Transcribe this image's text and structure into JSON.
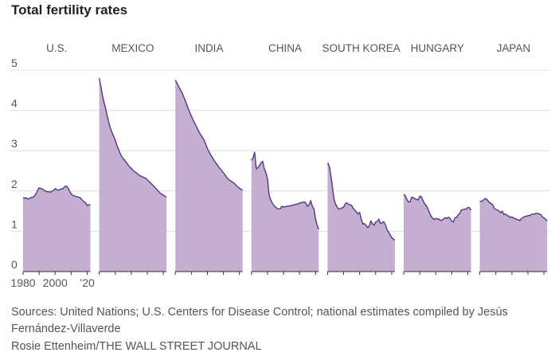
{
  "title": "Total fertility rates",
  "source_line1": "Sources: United Nations; U.S. Centers for Disease Control; national estimates compiled by Jesús",
  "source_line2": "Fernández-Villaverde",
  "credit": "Rosie Ettenheim/THE WALL STREET JOURNAL",
  "colors": {
    "fill": "#c4afd1",
    "line": "#5b3f86",
    "grid": "#dddddd",
    "axis": "#333333",
    "text": "#555555"
  },
  "chart_data": {
    "type": "area",
    "title": "Total fertility rates",
    "x_ticks": [
      "1980",
      "2000",
      "’20"
    ],
    "x_domain": [
      1980,
      2022
    ],
    "y_ticks": [
      0,
      1,
      2,
      3,
      4,
      5
    ],
    "ylim": [
      0,
      5
    ],
    "grid": true,
    "series": [
      {
        "name": "U.S.",
        "x": [
          1980,
          1981,
          1982,
          1983,
          1984,
          1985,
          1986,
          1987,
          1988,
          1989,
          1990,
          1991,
          1992,
          1993,
          1994,
          1995,
          1996,
          1997,
          1998,
          1999,
          2000,
          2001,
          2002,
          2003,
          2004,
          2005,
          2006,
          2007,
          2008,
          2009,
          2010,
          2011,
          2012,
          2013,
          2014,
          2015,
          2016,
          2017,
          2018,
          2019,
          2020,
          2021,
          2022
        ],
        "values": [
          1.84,
          1.82,
          1.83,
          1.8,
          1.81,
          1.84,
          1.84,
          1.87,
          1.93,
          2.01,
          2.08,
          2.06,
          2.05,
          2.02,
          2.0,
          1.98,
          1.98,
          1.97,
          2.0,
          2.01,
          2.06,
          2.03,
          2.02,
          2.04,
          2.05,
          2.06,
          2.11,
          2.12,
          2.08,
          2.0,
          1.93,
          1.89,
          1.88,
          1.86,
          1.86,
          1.84,
          1.82,
          1.77,
          1.73,
          1.71,
          1.64,
          1.66,
          1.65
        ]
      },
      {
        "name": "MEXICO",
        "x": [
          1980,
          1981,
          1982,
          1983,
          1984,
          1985,
          1986,
          1987,
          1988,
          1989,
          1990,
          1991,
          1992,
          1993,
          1994,
          1995,
          1996,
          1997,
          1998,
          1999,
          2000,
          2001,
          2002,
          2003,
          2004,
          2005,
          2006,
          2007,
          2008,
          2009,
          2010,
          2011,
          2012,
          2013,
          2014,
          2015,
          2016,
          2017,
          2018,
          2019,
          2020,
          2021,
          2022
        ],
        "values": [
          4.8,
          4.6,
          4.38,
          4.2,
          4.05,
          3.86,
          3.7,
          3.56,
          3.45,
          3.36,
          3.26,
          3.14,
          3.04,
          2.94,
          2.86,
          2.8,
          2.76,
          2.7,
          2.65,
          2.6,
          2.56,
          2.52,
          2.48,
          2.46,
          2.42,
          2.39,
          2.37,
          2.35,
          2.33,
          2.32,
          2.28,
          2.24,
          2.2,
          2.16,
          2.12,
          2.08,
          2.04,
          1.99,
          1.95,
          1.92,
          1.9,
          1.87,
          1.85
        ]
      },
      {
        "name": "INDIA",
        "x": [
          1980,
          1981,
          1982,
          1983,
          1984,
          1985,
          1986,
          1987,
          1988,
          1989,
          1990,
          1991,
          1992,
          1993,
          1994,
          1995,
          1996,
          1997,
          1998,
          1999,
          2000,
          2001,
          2002,
          2003,
          2004,
          2005,
          2006,
          2007,
          2008,
          2009,
          2010,
          2011,
          2012,
          2013,
          2014,
          2015,
          2016,
          2017,
          2018,
          2019,
          2020,
          2021,
          2022
        ],
        "values": [
          4.75,
          4.68,
          4.6,
          4.52,
          4.45,
          4.36,
          4.26,
          4.16,
          4.05,
          3.95,
          3.86,
          3.77,
          3.69,
          3.61,
          3.53,
          3.45,
          3.38,
          3.32,
          3.26,
          3.16,
          3.05,
          2.98,
          2.9,
          2.84,
          2.77,
          2.71,
          2.66,
          2.6,
          2.55,
          2.5,
          2.45,
          2.4,
          2.34,
          2.3,
          2.26,
          2.24,
          2.21,
          2.18,
          2.14,
          2.1,
          2.07,
          2.04,
          2.02
        ]
      },
      {
        "name": "CHINA",
        "x": [
          1980,
          1981,
          1982,
          1983,
          1984,
          1985,
          1986,
          1987,
          1988,
          1989,
          1990,
          1991,
          1992,
          1993,
          1994,
          1995,
          1996,
          1997,
          1998,
          1999,
          2000,
          2001,
          2002,
          2003,
          2004,
          2005,
          2006,
          2007,
          2008,
          2009,
          2010,
          2011,
          2012,
          2013,
          2014,
          2015,
          2016,
          2017,
          2018,
          2019,
          2020,
          2021,
          2022
        ],
        "values": [
          2.76,
          2.82,
          2.96,
          2.55,
          2.58,
          2.63,
          2.7,
          2.74,
          2.55,
          2.46,
          2.3,
          1.9,
          1.78,
          1.7,
          1.64,
          1.6,
          1.57,
          1.55,
          1.56,
          1.62,
          1.6,
          1.61,
          1.62,
          1.62,
          1.63,
          1.64,
          1.65,
          1.66,
          1.67,
          1.68,
          1.7,
          1.71,
          1.72,
          1.73,
          1.7,
          1.62,
          1.66,
          1.76,
          1.62,
          1.56,
          1.3,
          1.15,
          1.05
        ]
      },
      {
        "name": "SOUTH KOREA",
        "x": [
          1980,
          1981,
          1982,
          1983,
          1984,
          1985,
          1986,
          1987,
          1988,
          1989,
          1990,
          1991,
          1992,
          1993,
          1994,
          1995,
          1996,
          1997,
          1998,
          1999,
          2000,
          2001,
          2002,
          2003,
          2004,
          2005,
          2006,
          2007,
          2008,
          2009,
          2010,
          2011,
          2012,
          2013,
          2014,
          2015,
          2016,
          2017,
          2018,
          2019,
          2020,
          2021,
          2022
        ],
        "values": [
          2.7,
          2.62,
          2.4,
          2.1,
          1.8,
          1.67,
          1.6,
          1.55,
          1.56,
          1.58,
          1.6,
          1.68,
          1.71,
          1.67,
          1.66,
          1.64,
          1.57,
          1.52,
          1.48,
          1.43,
          1.47,
          1.3,
          1.18,
          1.19,
          1.15,
          1.09,
          1.13,
          1.26,
          1.19,
          1.15,
          1.23,
          1.24,
          1.3,
          1.19,
          1.21,
          1.24,
          1.17,
          1.05,
          0.98,
          0.92,
          0.84,
          0.81,
          0.78
        ]
      },
      {
        "name": "HUNGARY",
        "x": [
          1980,
          1981,
          1982,
          1983,
          1984,
          1985,
          1986,
          1987,
          1988,
          1989,
          1990,
          1991,
          1992,
          1993,
          1994,
          1995,
          1996,
          1997,
          1998,
          1999,
          2000,
          2001,
          2002,
          2003,
          2004,
          2005,
          2006,
          2007,
          2008,
          2009,
          2010,
          2011,
          2012,
          2013,
          2014,
          2015,
          2016,
          2017,
          2018,
          2019,
          2020,
          2021,
          2022
        ],
        "values": [
          1.92,
          1.88,
          1.79,
          1.73,
          1.73,
          1.85,
          1.83,
          1.81,
          1.79,
          1.78,
          1.87,
          1.86,
          1.77,
          1.69,
          1.64,
          1.57,
          1.46,
          1.38,
          1.33,
          1.29,
          1.32,
          1.31,
          1.3,
          1.27,
          1.28,
          1.31,
          1.34,
          1.32,
          1.35,
          1.32,
          1.25,
          1.23,
          1.34,
          1.34,
          1.41,
          1.44,
          1.53,
          1.54,
          1.55,
          1.55,
          1.59,
          1.59,
          1.52
        ]
      },
      {
        "name": "JAPAN",
        "x": [
          1980,
          1981,
          1982,
          1983,
          1984,
          1985,
          1986,
          1987,
          1988,
          1989,
          1990,
          1991,
          1992,
          1993,
          1994,
          1995,
          1996,
          1997,
          1998,
          1999,
          2000,
          2001,
          2002,
          2003,
          2004,
          2005,
          2006,
          2007,
          2008,
          2009,
          2010,
          2011,
          2012,
          2013,
          2014,
          2015,
          2016,
          2017,
          2018,
          2019,
          2020,
          2021,
          2022
        ],
        "values": [
          1.75,
          1.74,
          1.77,
          1.8,
          1.81,
          1.76,
          1.72,
          1.69,
          1.66,
          1.57,
          1.54,
          1.53,
          1.5,
          1.46,
          1.5,
          1.42,
          1.43,
          1.39,
          1.38,
          1.34,
          1.36,
          1.33,
          1.32,
          1.29,
          1.29,
          1.26,
          1.32,
          1.34,
          1.37,
          1.37,
          1.39,
          1.39,
          1.41,
          1.43,
          1.42,
          1.45,
          1.44,
          1.43,
          1.42,
          1.36,
          1.33,
          1.3,
          1.26
        ]
      }
    ]
  }
}
